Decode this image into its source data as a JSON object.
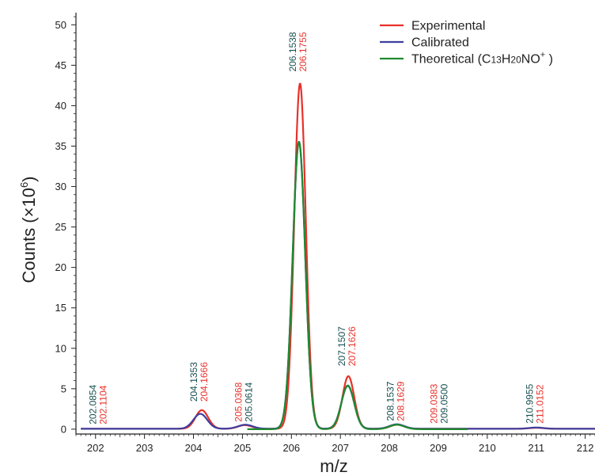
{
  "chart_data": {
    "type": "line",
    "xlabel": "m/z",
    "ylabel": "Counts (×10",
    "ylabel_sup": "6",
    "ylabel_close": ")",
    "xlim": [
      201.6,
      212.2
    ],
    "ylim": [
      -0.6,
      51.5
    ],
    "xticks": [
      202,
      203,
      204,
      205,
      206,
      207,
      208,
      209,
      210,
      211,
      212
    ],
    "yticks": [
      0,
      5,
      10,
      15,
      20,
      25,
      30,
      35,
      40,
      45,
      50
    ],
    "grid": false,
    "legend_position": "top-right",
    "legend": [
      {
        "label": "Experimental",
        "color": "#e8302a"
      },
      {
        "label": "Calibrated",
        "color": "#3f3f9e"
      },
      {
        "label_parts": [
          "Theoretical (C",
          "13",
          "H",
          "20",
          "NO",
          "+",
          " )"
        ],
        "color": "#1f8a2f"
      }
    ],
    "series": [
      {
        "name": "Experimental",
        "color": "#e8302a",
        "x_range": [
          201.7,
          212.2
        ],
        "baseline": 0.05,
        "peaks": [
          {
            "center": 204.17,
            "height": 2.3,
            "sigma": 0.13
          },
          {
            "center": 205.05,
            "height": 0.45,
            "sigma": 0.14
          },
          {
            "center": 206.176,
            "height": 42.7,
            "sigma": 0.118
          },
          {
            "center": 207.163,
            "height": 6.5,
            "sigma": 0.12
          },
          {
            "center": 208.16,
            "height": 0.5,
            "sigma": 0.14
          },
          {
            "center": 211.0,
            "height": 0.12,
            "sigma": 0.15
          }
        ]
      },
      {
        "name": "Calibrated",
        "color": "#3f3f9e",
        "x_range": [
          201.7,
          212.2
        ],
        "baseline": 0.05,
        "peaks": [
          {
            "center": 204.14,
            "height": 1.85,
            "sigma": 0.14
          },
          {
            "center": 205.06,
            "height": 0.5,
            "sigma": 0.15
          },
          {
            "center": 206.154,
            "height": 35.5,
            "sigma": 0.128
          },
          {
            "center": 207.151,
            "height": 5.3,
            "sigma": 0.13
          },
          {
            "center": 208.154,
            "height": 0.55,
            "sigma": 0.15
          },
          {
            "center": 211.0,
            "height": 0.15,
            "sigma": 0.15
          }
        ]
      },
      {
        "name": "Theoretical",
        "color": "#1f8a2f",
        "x_range": [
          205.1,
          209.6
        ],
        "baseline": 0.0,
        "peaks": [
          {
            "center": 206.154,
            "height": 35.5,
            "sigma": 0.128
          },
          {
            "center": 207.151,
            "height": 5.4,
            "sigma": 0.13
          },
          {
            "center": 208.154,
            "height": 0.55,
            "sigma": 0.15
          }
        ]
      }
    ],
    "annotations": [
      {
        "x": 202.08,
        "y": 0.6,
        "lines": [
          {
            "text": "202.0854",
            "color": "#184f4f"
          },
          {
            "text": "202.1104",
            "color": "#e8302a"
          }
        ]
      },
      {
        "x": 204.14,
        "y": 3.4,
        "lines": [
          {
            "text": "204.1353",
            "color": "#184f4f"
          },
          {
            "text": "204.1666",
            "color": "#e8302a"
          }
        ]
      },
      {
        "x": 205.05,
        "y": 0.9,
        "lines": [
          {
            "text": "205.0368",
            "color": "#e8302a"
          },
          {
            "text": "205.0614",
            "color": "#184f4f"
          }
        ]
      },
      {
        "x": 206.16,
        "y": 44.2,
        "lines": [
          {
            "text": "206.1538",
            "color": "#184f4f"
          },
          {
            "text": "206.1755",
            "color": "#e8302a"
          }
        ]
      },
      {
        "x": 207.16,
        "y": 7.8,
        "lines": [
          {
            "text": "207.1507",
            "color": "#184f4f"
          },
          {
            "text": "207.1626",
            "color": "#e8302a"
          }
        ]
      },
      {
        "x": 208.15,
        "y": 1.0,
        "lines": [
          {
            "text": "208.1537",
            "color": "#184f4f"
          },
          {
            "text": "208.1629",
            "color": "#e8302a"
          }
        ]
      },
      {
        "x": 209.04,
        "y": 0.7,
        "lines": [
          {
            "text": "209.0383",
            "color": "#e8302a"
          },
          {
            "text": "209.0500",
            "color": "#184f4f"
          }
        ]
      },
      {
        "x": 211.0,
        "y": 0.7,
        "lines": [
          {
            "text": "210.9955",
            "color": "#184f4f"
          },
          {
            "text": "211.0152",
            "color": "#e8302a"
          }
        ]
      }
    ]
  }
}
